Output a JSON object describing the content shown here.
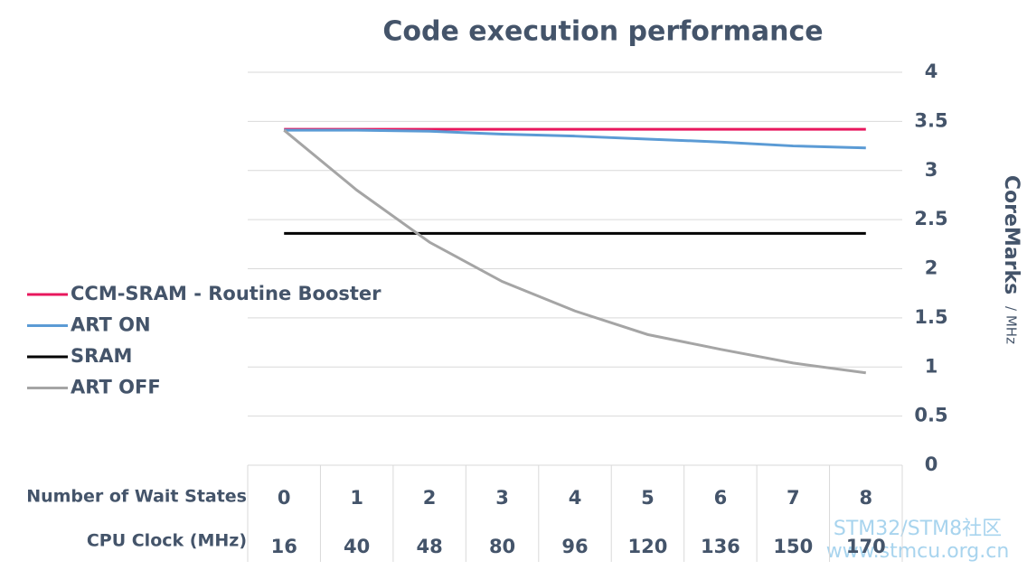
{
  "chart_data": {
    "type": "line",
    "title": "Code execution performance",
    "ylabel": "CoreMarks",
    "ylabel_unit": "/ MHz",
    "row_labels": [
      "Number of Wait States",
      "CPU Clock (MHz)"
    ],
    "categories": [
      "0",
      "1",
      "2",
      "3",
      "4",
      "5",
      "6",
      "7",
      "8"
    ],
    "categories2": [
      "16",
      "40",
      "48",
      "80",
      "96",
      "120",
      "136",
      "150",
      "170"
    ],
    "series": [
      {
        "name": "CCM-SRAM - Routine Booster",
        "color": "#e8175d",
        "values": [
          3.42,
          3.42,
          3.42,
          3.42,
          3.42,
          3.42,
          3.42,
          3.42,
          3.42
        ]
      },
      {
        "name": "ART ON",
        "color": "#5b9bd5",
        "values": [
          3.41,
          3.41,
          3.4,
          3.37,
          3.35,
          3.32,
          3.29,
          3.25,
          3.23
        ]
      },
      {
        "name": "SRAM",
        "color": "#000000",
        "values": [
          2.36,
          2.36,
          2.36,
          2.36,
          2.36,
          2.36,
          2.36,
          2.36,
          2.36
        ]
      },
      {
        "name": "ART OFF",
        "color": "#a5a5a5",
        "values": [
          3.41,
          2.8,
          2.27,
          1.87,
          1.57,
          1.33,
          1.18,
          1.04,
          0.94
        ]
      }
    ],
    "ylim": [
      0,
      4
    ],
    "yticks": [
      0,
      0.5,
      1,
      1.5,
      2,
      2.5,
      3,
      3.5,
      4
    ],
    "grid": true,
    "legend": "left",
    "watermark": [
      "STM32/STM8社区",
      "www.stmcu.org.cn"
    ]
  }
}
